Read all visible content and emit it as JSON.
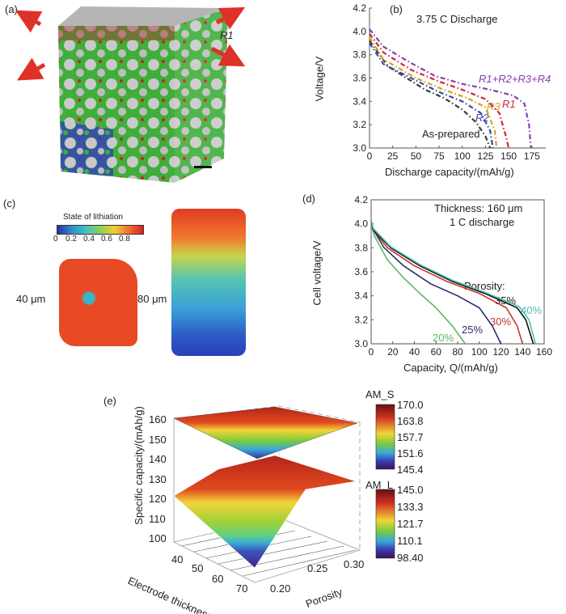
{
  "panels": {
    "a": {
      "label": "(a)",
      "annotation": "R1",
      "arrow_color": "#e0302a"
    },
    "b": {
      "label": "(b)"
    },
    "c": {
      "label": "(c)",
      "colorbar_title": "State of lithiation",
      "colorbar_ticks": [
        "0",
        "0.2",
        "0.4",
        "0.6",
        "0.8"
      ],
      "sample_labels": [
        "40 μm",
        "80 μm"
      ]
    },
    "d": {
      "label": "(d)"
    },
    "e": {
      "label": "(e)"
    }
  },
  "chart_data": [
    {
      "id": "b",
      "type": "line",
      "title": "3.75 C Discharge",
      "xlabel": "Discharge capacity/(mAh/g)",
      "ylabel": "Voltage/V",
      "xlim": [
        0,
        190
      ],
      "ylim": [
        3.0,
        4.2
      ],
      "xticks": [
        0,
        25,
        50,
        75,
        100,
        125,
        150,
        175
      ],
      "yticks": [
        "3.0",
        "3.2",
        "3.4",
        "3.6",
        "3.8",
        "4.0",
        "4.2"
      ],
      "line_style": "dash-dot",
      "series": [
        {
          "name": "As-prepared",
          "color": "#3a3a3a",
          "x": [
            0,
            20,
            40,
            60,
            80,
            100,
            115,
            125,
            130
          ],
          "y": [
            3.92,
            3.7,
            3.6,
            3.5,
            3.43,
            3.33,
            3.22,
            3.1,
            3.0
          ]
        },
        {
          "name": "R2",
          "color": "#3b4aa3",
          "x": [
            0,
            15,
            50,
            75,
            100,
            120,
            130,
            133
          ],
          "y": [
            3.9,
            3.72,
            3.58,
            3.48,
            3.4,
            3.3,
            3.15,
            3.0
          ]
        },
        {
          "name": "R3",
          "color": "#d6a21a",
          "x": [
            0,
            15,
            50,
            80,
            105,
            125,
            135,
            137
          ],
          "y": [
            3.95,
            3.76,
            3.6,
            3.5,
            3.43,
            3.35,
            3.15,
            3.0
          ]
        },
        {
          "name": "R1",
          "color": "#d1263c",
          "x": [
            0,
            15,
            45,
            75,
            100,
            125,
            140,
            147,
            150
          ],
          "y": [
            3.98,
            3.82,
            3.67,
            3.57,
            3.5,
            3.42,
            3.3,
            3.1,
            3.0
          ]
        },
        {
          "name": "R1+R2+R3+R4",
          "color": "#8a3fa8",
          "x": [
            0,
            15,
            40,
            70,
            100,
            130,
            155,
            167,
            172,
            174
          ],
          "y": [
            4.02,
            3.87,
            3.75,
            3.62,
            3.55,
            3.5,
            3.45,
            3.38,
            3.2,
            3.0
          ]
        }
      ]
    },
    {
      "id": "d",
      "type": "line",
      "title": "Thickness: 160 μm",
      "subtitle": "1 C discharge",
      "legend_title": "Porosity:",
      "xlabel": "Capacity, Q/(mAh/g)",
      "ylabel": "Cell voltage/V",
      "xlim": [
        0,
        160
      ],
      "ylim": [
        3.0,
        4.2
      ],
      "xticks": [
        0,
        20,
        40,
        60,
        80,
        100,
        120,
        140,
        160
      ],
      "yticks": [
        "3.0",
        "3.2",
        "3.4",
        "3.6",
        "3.8",
        "4.0",
        "4.2"
      ],
      "series": [
        {
          "name": "20%",
          "color": "#5cb85c",
          "x": [
            0,
            3,
            15,
            30,
            45,
            60,
            75,
            87
          ],
          "y": [
            4.0,
            3.9,
            3.7,
            3.55,
            3.42,
            3.3,
            3.15,
            3.0
          ]
        },
        {
          "name": "25%",
          "color": "#2d2d6e",
          "x": [
            0,
            2,
            12,
            30,
            55,
            80,
            100,
            112,
            120
          ],
          "y": [
            4.02,
            3.95,
            3.8,
            3.65,
            3.5,
            3.4,
            3.3,
            3.15,
            3.0
          ]
        },
        {
          "name": "30%",
          "color": "#c0392b",
          "x": [
            0,
            2,
            15,
            40,
            70,
            100,
            125,
            135,
            140
          ],
          "y": [
            4.02,
            3.95,
            3.8,
            3.65,
            3.52,
            3.42,
            3.3,
            3.15,
            3.0
          ]
        },
        {
          "name": "35%",
          "color": "#111111",
          "x": [
            0,
            2,
            18,
            45,
            75,
            105,
            135,
            143,
            150
          ],
          "y": [
            4.03,
            3.95,
            3.8,
            3.65,
            3.52,
            3.42,
            3.3,
            3.2,
            3.0
          ]
        },
        {
          "name": "40%",
          "color": "#4fc1b0",
          "x": [
            0,
            2,
            18,
            45,
            75,
            105,
            137,
            146,
            152
          ],
          "y": [
            4.03,
            3.96,
            3.81,
            3.66,
            3.53,
            3.43,
            3.31,
            3.2,
            3.0
          ]
        }
      ]
    },
    {
      "id": "e",
      "type": "surface3d",
      "zlabel": "Specific capacity/(mAh/g)",
      "xlabel": "Electrode thickness/μm",
      "ylabel": "Porosity",
      "zticks": [
        "100",
        "110",
        "120",
        "130",
        "140",
        "150",
        "160"
      ],
      "xticks": [
        "40",
        "50",
        "60",
        "70"
      ],
      "yticks": [
        "0.20",
        "0.25",
        "0.30"
      ],
      "surfaces": [
        {
          "name": "AM_S",
          "colorbar_ticks": [
            "170.0",
            "163.8",
            "157.7",
            "151.6",
            "145.4"
          ],
          "range": [
            145.4,
            170.0
          ]
        },
        {
          "name": "AM_L",
          "colorbar_ticks": [
            "145.0",
            "133.3",
            "121.7",
            "110.1",
            "98.40"
          ],
          "range": [
            98.4,
            145.0
          ]
        }
      ]
    }
  ]
}
